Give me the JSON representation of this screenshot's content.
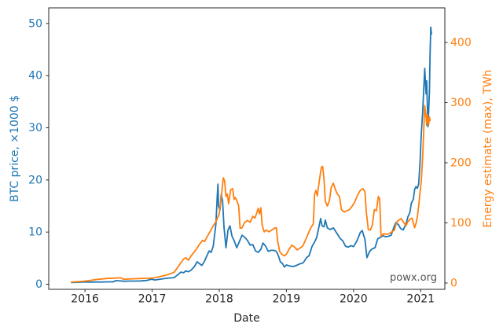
{
  "figure": {
    "watermark": "powx.org",
    "background": "#ffffff"
  },
  "chart_data": {
    "type": "line",
    "title": "",
    "xlabel": "Date",
    "grid": false,
    "legend": "none",
    "axis_color": "#262626",
    "xlim": [
      2015.46,
      2021.36
    ],
    "x_ticks": [
      2016,
      2017,
      2018,
      2019,
      2020,
      2021
    ],
    "left_axis": {
      "label": "BTC price, ×1000 $",
      "color": "#1f77b4",
      "ticks": [
        0,
        10,
        20,
        30,
        40,
        50
      ],
      "lim": [
        -0.98,
        53.0
      ]
    },
    "right_axis": {
      "label": "Energy estimate (max), TWh",
      "color": "#ff7f0e",
      "ticks": [
        0,
        100,
        200,
        300,
        400
      ],
      "lim": [
        -10.5,
        457.5
      ]
    },
    "series": [
      {
        "name": "BTC price",
        "axis": "left",
        "color": "#1f77b4",
        "points": [
          [
            2015.8,
            0.33
          ],
          [
            2015.92,
            0.38
          ],
          [
            2016.0,
            0.43
          ],
          [
            2016.08,
            0.4
          ],
          [
            2016.17,
            0.42
          ],
          [
            2016.25,
            0.42
          ],
          [
            2016.33,
            0.45
          ],
          [
            2016.42,
            0.45
          ],
          [
            2016.46,
            0.7
          ],
          [
            2016.5,
            0.67
          ],
          [
            2016.58,
            0.58
          ],
          [
            2016.67,
            0.61
          ],
          [
            2016.75,
            0.61
          ],
          [
            2016.83,
            0.63
          ],
          [
            2016.92,
            0.73
          ],
          [
            2016.99,
            0.96
          ],
          [
            2017.04,
            0.82
          ],
          [
            2017.1,
            0.92
          ],
          [
            2017.17,
            1.05
          ],
          [
            2017.25,
            1.19
          ],
          [
            2017.33,
            1.27
          ],
          [
            2017.38,
            1.8
          ],
          [
            2017.43,
            2.32
          ],
          [
            2017.47,
            2.2
          ],
          [
            2017.5,
            2.55
          ],
          [
            2017.54,
            2.4
          ],
          [
            2017.58,
            2.7
          ],
          [
            2017.63,
            3.4
          ],
          [
            2017.67,
            4.3
          ],
          [
            2017.71,
            3.9
          ],
          [
            2017.74,
            3.6
          ],
          [
            2017.78,
            4.4
          ],
          [
            2017.82,
            5.6
          ],
          [
            2017.85,
            6.4
          ],
          [
            2017.88,
            6.1
          ],
          [
            2017.91,
            7.3
          ],
          [
            2017.93,
            9.4
          ],
          [
            2017.95,
            11.5
          ],
          [
            2017.97,
            16.8
          ],
          [
            2017.98,
            19.2
          ],
          [
            2017.99,
            15.0
          ],
          [
            2018.01,
            14.2
          ],
          [
            2018.03,
            17.2
          ],
          [
            2018.05,
            16.0
          ],
          [
            2018.07,
            11.0
          ],
          [
            2018.1,
            7.0
          ],
          [
            2018.13,
            10.4
          ],
          [
            2018.16,
            11.2
          ],
          [
            2018.19,
            9.2
          ],
          [
            2018.22,
            8.4
          ],
          [
            2018.26,
            7.0
          ],
          [
            2018.3,
            8.2
          ],
          [
            2018.34,
            9.4
          ],
          [
            2018.38,
            9.0
          ],
          [
            2018.42,
            8.4
          ],
          [
            2018.46,
            7.5
          ],
          [
            2018.5,
            7.6
          ],
          [
            2018.54,
            6.4
          ],
          [
            2018.58,
            6.1
          ],
          [
            2018.62,
            6.7
          ],
          [
            2018.65,
            7.9
          ],
          [
            2018.69,
            7.3
          ],
          [
            2018.73,
            6.3
          ],
          [
            2018.77,
            6.5
          ],
          [
            2018.81,
            6.5
          ],
          [
            2018.85,
            6.3
          ],
          [
            2018.88,
            5.5
          ],
          [
            2018.91,
            4.3
          ],
          [
            2018.94,
            4.0
          ],
          [
            2018.97,
            3.3
          ],
          [
            2019.0,
            3.7
          ],
          [
            2019.05,
            3.5
          ],
          [
            2019.1,
            3.4
          ],
          [
            2019.15,
            3.6
          ],
          [
            2019.2,
            3.9
          ],
          [
            2019.25,
            4.1
          ],
          [
            2019.3,
            5.1
          ],
          [
            2019.34,
            5.5
          ],
          [
            2019.38,
            7.2
          ],
          [
            2019.42,
            8.1
          ],
          [
            2019.45,
            8.9
          ],
          [
            2019.48,
            10.7
          ],
          [
            2019.51,
            12.6
          ],
          [
            2019.53,
            11.2
          ],
          [
            2019.56,
            11.0
          ],
          [
            2019.58,
            12.3
          ],
          [
            2019.61,
            10.8
          ],
          [
            2019.65,
            10.5
          ],
          [
            2019.7,
            10.8
          ],
          [
            2019.75,
            9.8
          ],
          [
            2019.8,
            8.8
          ],
          [
            2019.84,
            8.3
          ],
          [
            2019.88,
            7.3
          ],
          [
            2019.92,
            7.1
          ],
          [
            2019.96,
            7.4
          ],
          [
            2020.0,
            7.2
          ],
          [
            2020.05,
            8.3
          ],
          [
            2020.1,
            9.9
          ],
          [
            2020.13,
            10.3
          ],
          [
            2020.17,
            8.6
          ],
          [
            2020.2,
            5.1
          ],
          [
            2020.24,
            6.3
          ],
          [
            2020.28,
            6.8
          ],
          [
            2020.32,
            7.0
          ],
          [
            2020.36,
            8.7
          ],
          [
            2020.4,
            9.0
          ],
          [
            2020.44,
            9.3
          ],
          [
            2020.48,
            9.1
          ],
          [
            2020.52,
            9.2
          ],
          [
            2020.56,
            9.4
          ],
          [
            2020.6,
            10.9
          ],
          [
            2020.63,
            11.8
          ],
          [
            2020.67,
            11.4
          ],
          [
            2020.7,
            10.7
          ],
          [
            2020.74,
            10.4
          ],
          [
            2020.78,
            11.5
          ],
          [
            2020.81,
            12.9
          ],
          [
            2020.84,
            13.8
          ],
          [
            2020.86,
            15.5
          ],
          [
            2020.89,
            16.3
          ],
          [
            2020.91,
            18.2
          ],
          [
            2020.93,
            18.7
          ],
          [
            2020.95,
            18.4
          ],
          [
            2020.97,
            19.2
          ],
          [
            2020.99,
            23.2
          ],
          [
            2021.01,
            29.0
          ],
          [
            2021.03,
            33.0
          ],
          [
            2021.05,
            38.5
          ],
          [
            2021.06,
            41.4
          ],
          [
            2021.08,
            36.5
          ],
          [
            2021.09,
            39.0
          ],
          [
            2021.1,
            34.0
          ],
          [
            2021.11,
            30.2
          ],
          [
            2021.12,
            33.5
          ],
          [
            2021.13,
            37.0
          ],
          [
            2021.14,
            44.0
          ],
          [
            2021.15,
            49.3
          ],
          [
            2021.16,
            48.0
          ]
        ]
      },
      {
        "name": "Energy estimate (max)",
        "axis": "right",
        "color": "#ff7f0e",
        "points": [
          [
            2015.8,
            1.5
          ],
          [
            2015.92,
            2.4
          ],
          [
            2016.0,
            3.2
          ],
          [
            2016.08,
            4.4
          ],
          [
            2016.17,
            5.8
          ],
          [
            2016.25,
            6.8
          ],
          [
            2016.33,
            7.5
          ],
          [
            2016.42,
            8.0
          ],
          [
            2016.5,
            8.4
          ],
          [
            2016.54,
            8.5
          ],
          [
            2016.57,
            6.4
          ],
          [
            2016.65,
            6.8
          ],
          [
            2016.75,
            7.2
          ],
          [
            2016.85,
            7.6
          ],
          [
            2016.95,
            7.9
          ],
          [
            2017.0,
            8.2
          ],
          [
            2017.08,
            9.8
          ],
          [
            2017.17,
            12.0
          ],
          [
            2017.25,
            14.5
          ],
          [
            2017.33,
            18.0
          ],
          [
            2017.38,
            26.0
          ],
          [
            2017.43,
            34.0
          ],
          [
            2017.47,
            40.0
          ],
          [
            2017.5,
            42.0
          ],
          [
            2017.54,
            38.0
          ],
          [
            2017.58,
            45.0
          ],
          [
            2017.63,
            52.0
          ],
          [
            2017.67,
            58.0
          ],
          [
            2017.71,
            65.0
          ],
          [
            2017.75,
            71.0
          ],
          [
            2017.78,
            69.0
          ],
          [
            2017.82,
            77.0
          ],
          [
            2017.86,
            85.0
          ],
          [
            2017.9,
            93.0
          ],
          [
            2017.95,
            102.0
          ],
          [
            2018.0,
            115.0
          ],
          [
            2018.03,
            142.0
          ],
          [
            2018.06,
            175.0
          ],
          [
            2018.08,
            170.0
          ],
          [
            2018.1,
            144.0
          ],
          [
            2018.12,
            148.0
          ],
          [
            2018.14,
            132.0
          ],
          [
            2018.17,
            155.0
          ],
          [
            2018.2,
            157.0
          ],
          [
            2018.22,
            139.0
          ],
          [
            2018.24,
            142.0
          ],
          [
            2018.27,
            135.0
          ],
          [
            2018.29,
            128.0
          ],
          [
            2018.31,
            91.0
          ],
          [
            2018.34,
            92.0
          ],
          [
            2018.38,
            101.0
          ],
          [
            2018.42,
            104.0
          ],
          [
            2018.46,
            101.0
          ],
          [
            2018.5,
            111.0
          ],
          [
            2018.53,
            108.0
          ],
          [
            2018.56,
            117.0
          ],
          [
            2018.58,
            124.0
          ],
          [
            2018.6,
            115.0
          ],
          [
            2018.62,
            125.0
          ],
          [
            2018.64,
            96.0
          ],
          [
            2018.67,
            85.0
          ],
          [
            2018.7,
            88.0
          ],
          [
            2018.74,
            85.0
          ],
          [
            2018.78,
            88.0
          ],
          [
            2018.82,
            91.0
          ],
          [
            2018.85,
            92.0
          ],
          [
            2018.87,
            70.0
          ],
          [
            2018.9,
            52.0
          ],
          [
            2018.93,
            48.0
          ],
          [
            2018.97,
            45.0
          ],
          [
            2019.0,
            48.0
          ],
          [
            2019.04,
            56.0
          ],
          [
            2019.08,
            63.0
          ],
          [
            2019.12,
            60.0
          ],
          [
            2019.16,
            55.0
          ],
          [
            2019.2,
            58.0
          ],
          [
            2019.24,
            61.0
          ],
          [
            2019.28,
            70.0
          ],
          [
            2019.31,
            78.0
          ],
          [
            2019.34,
            86.0
          ],
          [
            2019.37,
            93.0
          ],
          [
            2019.4,
            98.0
          ],
          [
            2019.42,
            148.0
          ],
          [
            2019.44,
            154.0
          ],
          [
            2019.46,
            145.0
          ],
          [
            2019.49,
            170.0
          ],
          [
            2019.52,
            192.0
          ],
          [
            2019.54,
            194.0
          ],
          [
            2019.56,
            174.0
          ],
          [
            2019.58,
            136.0
          ],
          [
            2019.61,
            128.0
          ],
          [
            2019.64,
            137.0
          ],
          [
            2019.67,
            160.0
          ],
          [
            2019.7,
            166.0
          ],
          [
            2019.73,
            155.0
          ],
          [
            2019.76,
            148.0
          ],
          [
            2019.79,
            144.0
          ],
          [
            2019.82,
            122.0
          ],
          [
            2019.86,
            118.0
          ],
          [
            2019.9,
            120.0
          ],
          [
            2019.94,
            122.0
          ],
          [
            2019.98,
            128.0
          ],
          [
            2020.02,
            135.0
          ],
          [
            2020.06,
            146.0
          ],
          [
            2020.1,
            154.0
          ],
          [
            2020.14,
            157.0
          ],
          [
            2020.17,
            152.0
          ],
          [
            2020.19,
            118.0
          ],
          [
            2020.22,
            89.0
          ],
          [
            2020.25,
            88.0
          ],
          [
            2020.28,
            96.0
          ],
          [
            2020.31,
            122.0
          ],
          [
            2020.34,
            120.0
          ],
          [
            2020.37,
            144.0
          ],
          [
            2020.39,
            140.0
          ],
          [
            2020.41,
            78.0
          ],
          [
            2020.45,
            82.0
          ],
          [
            2020.49,
            81.0
          ],
          [
            2020.53,
            82.0
          ],
          [
            2020.57,
            85.0
          ],
          [
            2020.61,
            88.0
          ],
          [
            2020.64,
            101.0
          ],
          [
            2020.68,
            105.0
          ],
          [
            2020.71,
            107.0
          ],
          [
            2020.74,
            102.0
          ],
          [
            2020.78,
            95.0
          ],
          [
            2020.81,
            102.0
          ],
          [
            2020.84,
            106.0
          ],
          [
            2020.87,
            108.0
          ],
          [
            2020.89,
            100.0
          ],
          [
            2020.91,
            92.0
          ],
          [
            2020.93,
            99.0
          ],
          [
            2020.95,
            110.0
          ],
          [
            2020.97,
            128.0
          ],
          [
            2020.99,
            150.0
          ],
          [
            2021.01,
            170.0
          ],
          [
            2021.03,
            210.0
          ],
          [
            2021.05,
            265.0
          ],
          [
            2021.06,
            295.0
          ],
          [
            2021.08,
            278.0
          ],
          [
            2021.09,
            262.0
          ],
          [
            2021.1,
            280.0
          ],
          [
            2021.12,
            264.0
          ],
          [
            2021.13,
            276.0
          ],
          [
            2021.14,
            270.0
          ]
        ]
      }
    ]
  }
}
